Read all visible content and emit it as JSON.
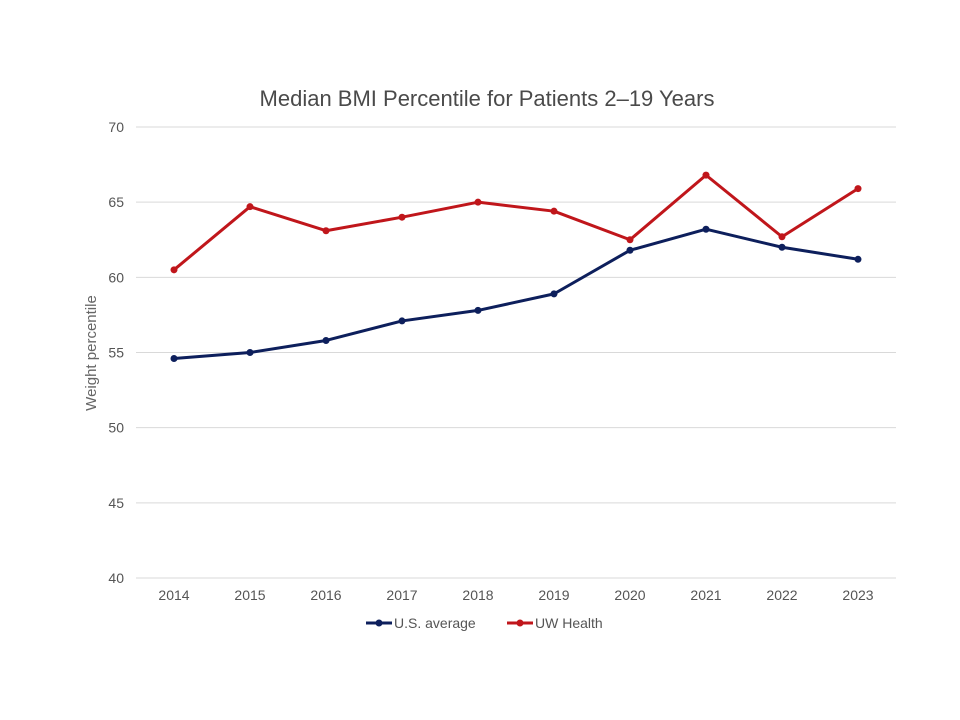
{
  "chart_data": {
    "type": "line",
    "title": "Median BMI Percentile for Patients 2–19 Years",
    "xlabel": "",
    "ylabel": "Weight percentile",
    "ylim": [
      40,
      70
    ],
    "yticks": [
      40,
      45,
      50,
      55,
      60,
      65,
      70
    ],
    "categories": [
      "2014",
      "2015",
      "2016",
      "2017",
      "2018",
      "2019",
      "2020",
      "2021",
      "2022",
      "2023"
    ],
    "grid": true,
    "legend_position": "bottom",
    "series": [
      {
        "name": "U.S. average",
        "color": "#0d1f5c",
        "values": [
          54.6,
          55.0,
          55.8,
          57.1,
          57.8,
          58.9,
          61.8,
          63.2,
          62.0,
          61.2
        ]
      },
      {
        "name": "UW Health",
        "color": "#c0161b",
        "values": [
          60.5,
          64.7,
          63.1,
          64.0,
          65.0,
          64.4,
          62.5,
          66.8,
          62.7,
          65.9
        ]
      }
    ]
  }
}
